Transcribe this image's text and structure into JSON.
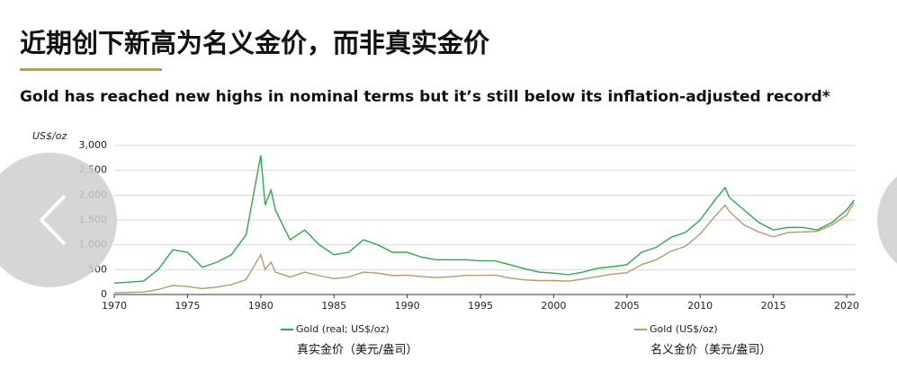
{
  "title": "近期创下新高为名义金价，而非真实金价",
  "chart_data": {
    "type": "line",
    "subtitle": "Gold has reached new highs in nominal terms but it’s still below its inflation-adjusted record*",
    "y_label": "US$/oz",
    "x": [
      1970,
      1972,
      1973,
      1974,
      1975,
      1976,
      1977,
      1978,
      1979,
      1980,
      1980.3,
      1980.7,
      1981,
      1982,
      1983,
      1984,
      1985,
      1986,
      1987,
      1988,
      1989,
      1990,
      1991,
      1992,
      1993,
      1994,
      1995,
      1996,
      1997,
      1998,
      1999,
      2000,
      2001,
      2002,
      2003,
      2004,
      2005,
      2006,
      2007,
      2008,
      2009,
      2010,
      2011,
      2011.7,
      2012,
      2013,
      2014,
      2015,
      2016,
      2017,
      2018,
      2019,
      2020,
      2020.5
    ],
    "series": [
      {
        "name": "Gold (real; US$/oz)",
        "color": "#2fa84f",
        "values": [
          230,
          270,
          500,
          900,
          850,
          550,
          650,
          800,
          1200,
          2800,
          1800,
          2100,
          1700,
          1100,
          1300,
          1000,
          800,
          850,
          1100,
          1000,
          850,
          850,
          750,
          700,
          700,
          700,
          680,
          680,
          600,
          520,
          450,
          430,
          400,
          450,
          530,
          560,
          600,
          850,
          950,
          1150,
          1250,
          1500,
          1900,
          2150,
          1950,
          1700,
          1450,
          1300,
          1350,
          1350,
          1300,
          1450,
          1700,
          1900
        ]
      },
      {
        "name": "Gold (US$/oz)",
        "color": "#b59a6a",
        "values": [
          35,
          50,
          100,
          180,
          160,
          120,
          150,
          200,
          300,
          800,
          500,
          650,
          450,
          350,
          450,
          380,
          320,
          350,
          450,
          430,
          380,
          390,
          360,
          340,
          360,
          385,
          385,
          390,
          330,
          295,
          280,
          280,
          270,
          310,
          360,
          410,
          440,
          600,
          700,
          870,
          970,
          1220,
          1570,
          1800,
          1670,
          1400,
          1260,
          1160,
          1250,
          1260,
          1270,
          1400,
          1600,
          1850
        ]
      }
    ],
    "legend_captions": [
      "真实金价（美元/盎司）",
      "名义金价（美元/盎司）"
    ],
    "xlim": [
      1970,
      2020.6
    ],
    "xticks": [
      1970,
      1975,
      1980,
      1985,
      1990,
      1995,
      2000,
      2005,
      2010,
      2015,
      2020
    ],
    "ylim": [
      0,
      3000
    ],
    "yticks": [
      0,
      500,
      {
        "value": 1000,
        "label": "1,000"
      },
      {
        "value": 1500,
        "label": "1,500"
      },
      {
        "value": 2000,
        "label": "2,000"
      },
      {
        "value": 2500,
        "label": "2,500"
      },
      {
        "value": 3000,
        "label": "3,000"
      }
    ],
    "grid": true
  }
}
